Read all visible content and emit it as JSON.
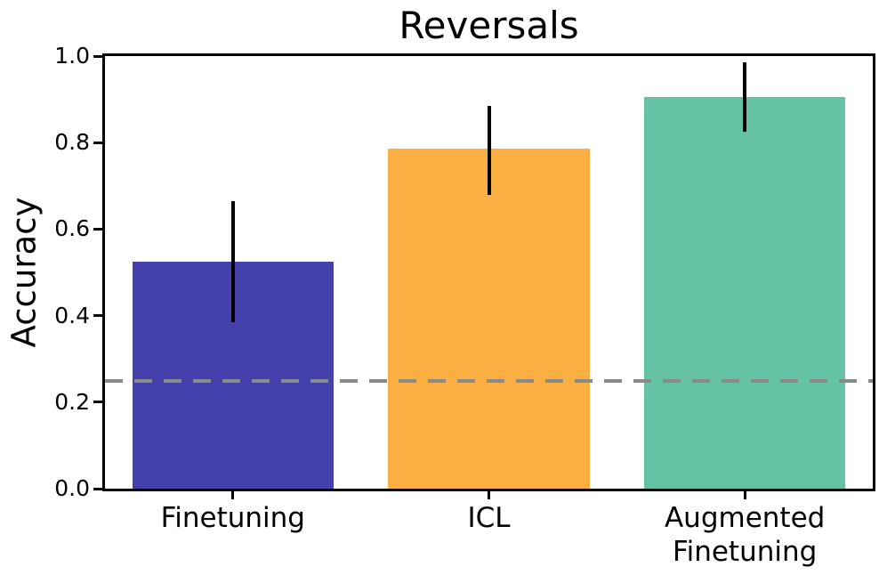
{
  "chart_data": {
    "type": "bar",
    "title": "Reversals",
    "xlabel": "",
    "ylabel": "Accuracy",
    "categories": [
      "Finetuning",
      "ICL",
      "Augmented\nFinetuning"
    ],
    "values": [
      0.525,
      0.785,
      0.905
    ],
    "error_bars": [
      {
        "low": 0.385,
        "high": 0.665
      },
      {
        "low": 0.68,
        "high": 0.885
      },
      {
        "low": 0.825,
        "high": 0.985
      }
    ],
    "bar_colors": [
      "#4440AC",
      "#FBAE42",
      "#66C2A5"
    ],
    "error_bar_color": "#000000",
    "reference_line": {
      "value": 0.25,
      "style": "dashed",
      "color": "#8A8A8A"
    },
    "ylim": [
      0.0,
      1.0
    ],
    "yticks": [
      0.0,
      0.2,
      0.4,
      0.6,
      0.8,
      1.0
    ],
    "ytick_labels": [
      "0.0",
      "0.2",
      "0.4",
      "0.6",
      "0.8",
      "1.0"
    ],
    "grid": false,
    "legend": null,
    "axis_color": "#000000",
    "background_color": "#FFFFFF"
  }
}
